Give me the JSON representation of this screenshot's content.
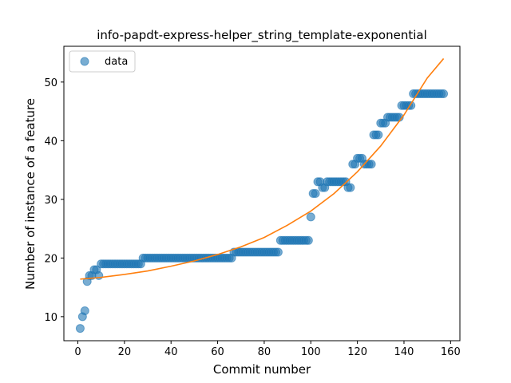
{
  "chart_data": {
    "type": "scatter",
    "title": "info-papdt-express-helper_string_template-exponential",
    "xlabel": "Commit number",
    "ylabel": "Number of instance of a feature",
    "xlim": [
      -6,
      164
    ],
    "ylim": [
      5.9,
      56.1
    ],
    "xticks": [
      0,
      20,
      40,
      60,
      80,
      100,
      120,
      140,
      160
    ],
    "yticks": [
      10,
      20,
      30,
      40,
      50
    ],
    "grid": false,
    "legend": {
      "position": "top-left",
      "entries": [
        "data"
      ]
    },
    "colors": {
      "data": "#1f77b4",
      "fit": "#ff7f0e"
    },
    "series": [
      {
        "name": "data",
        "kind": "scatter",
        "runs": [
          [
            1,
            1,
            8
          ],
          [
            2,
            2,
            10
          ],
          [
            3,
            3,
            11
          ],
          [
            4,
            4,
            16
          ],
          [
            5,
            6,
            17
          ],
          [
            7,
            8,
            18
          ],
          [
            9,
            9,
            17
          ],
          [
            10,
            27,
            19
          ],
          [
            28,
            66,
            20
          ],
          [
            67,
            86,
            21
          ],
          [
            87,
            99,
            23
          ],
          [
            100,
            100,
            27
          ],
          [
            101,
            102,
            31
          ],
          [
            103,
            104,
            33
          ],
          [
            105,
            106,
            32
          ],
          [
            107,
            115,
            33
          ],
          [
            116,
            117,
            32
          ],
          [
            118,
            119,
            36
          ],
          [
            120,
            122,
            37
          ],
          [
            123,
            126,
            36
          ],
          [
            127,
            129,
            41
          ],
          [
            130,
            132,
            43
          ],
          [
            133,
            138,
            44
          ],
          [
            139,
            143,
            46
          ],
          [
            144,
            157,
            48
          ]
        ]
      },
      {
        "kind": "line",
        "x": [
          1,
          10,
          20,
          30,
          40,
          50,
          60,
          70,
          80,
          90,
          100,
          110,
          120,
          130,
          140,
          150,
          157
        ],
        "y": [
          16.4,
          16.7,
          17.2,
          17.8,
          18.6,
          19.5,
          20.6,
          21.9,
          23.5,
          25.6,
          28.0,
          31.0,
          34.7,
          39.1,
          44.4,
          50.7,
          54.0
        ]
      }
    ]
  }
}
